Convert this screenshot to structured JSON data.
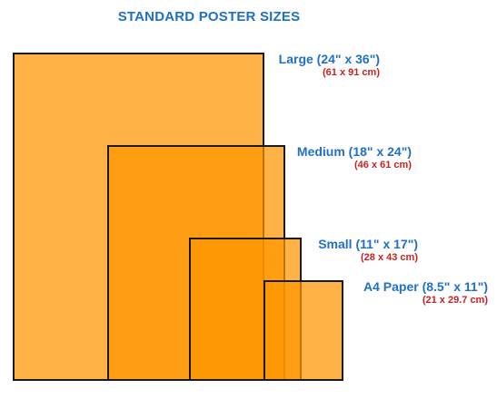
{
  "title": "STANDARD POSTER SIZES",
  "posters": [
    {
      "id": "large",
      "name": "Large (24\" x 36\")",
      "metric": "(61 x 91 cm)"
    },
    {
      "id": "medium",
      "name": "Medium (18\" x 24\")",
      "metric": "(46 x 61 cm)"
    },
    {
      "id": "small",
      "name": "Small (11\" x 17\")",
      "metric": "(28 x 43 cm)"
    },
    {
      "id": "a4",
      "name": "A4 Paper (8.5\" x 11\")",
      "metric": "(21 x 29.7 cm)"
    }
  ],
  "colors": {
    "title": "#1f6fc8",
    "label_name": "#2070c8",
    "label_metric": "#cc1f1f",
    "poster_fill": "#ff9600",
    "poster_border": "#1a1a1a"
  }
}
